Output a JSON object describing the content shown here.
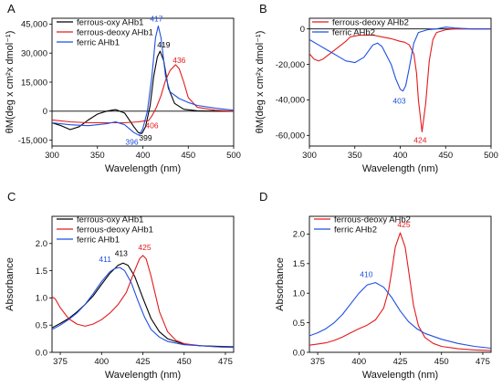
{
  "chart_data": [
    {
      "panel": "A",
      "type": "line",
      "xlabel": "Wavelength (nm)",
      "ylabel": "θM(deg x cm²x dmol⁻¹)",
      "xlim": [
        300,
        500
      ],
      "ylim": [
        -18000,
        48000
      ],
      "xticks": [
        300,
        350,
        400,
        450,
        500
      ],
      "yticks": [
        -15000,
        0,
        15000,
        30000,
        45000
      ],
      "ytick_labels": [
        "-15,000",
        "0",
        "15,000",
        "30,000",
        "45,000"
      ],
      "zero_line": true,
      "legend": "top-left",
      "colors": [
        "#000000",
        "#e31a1c",
        "#1f4fe0"
      ],
      "series": [
        {
          "name": "ferrous-oxy AHb1",
          "x": [
            300,
            310,
            320,
            330,
            340,
            350,
            360,
            370,
            380,
            390,
            395,
            399,
            403,
            408,
            412,
            416,
            419,
            423,
            428,
            435,
            445,
            460,
            480,
            500
          ],
          "y": [
            -6000,
            -7500,
            -9500,
            -8000,
            -4500,
            -1500,
            0,
            800,
            -1000,
            -8000,
            -11000,
            -11500,
            -8000,
            3000,
            18000,
            28000,
            31000,
            26000,
            12000,
            4000,
            1000,
            200,
            0,
            0
          ]
        },
        {
          "name": "ferrous-deoxy AHb1",
          "x": [
            300,
            320,
            340,
            360,
            380,
            395,
            402,
            406,
            410,
            415,
            420,
            425,
            430,
            436,
            440,
            445,
            450,
            460,
            480,
            500
          ],
          "y": [
            -4500,
            -5500,
            -6000,
            -6000,
            -6000,
            -5500,
            -5000,
            -5000,
            -2500,
            2000,
            8000,
            16000,
            21000,
            24000,
            22000,
            15000,
            7000,
            2000,
            500,
            0
          ]
        },
        {
          "name": "ferric AHb1",
          "x": [
            300,
            320,
            340,
            360,
            370,
            380,
            390,
            396,
            400,
            405,
            410,
            414,
            417,
            420,
            425,
            430,
            440,
            450,
            460,
            480,
            500
          ],
          "y": [
            -6000,
            -7000,
            -7500,
            -6500,
            -5500,
            -7000,
            -11000,
            -12500,
            -9000,
            0,
            18000,
            38000,
            44000,
            38000,
            18000,
            10000,
            6500,
            4500,
            3000,
            1500,
            500
          ]
        }
      ],
      "annotations": [
        {
          "text": "417",
          "x": 417,
          "y": 44000,
          "series": 2
        },
        {
          "text": "419",
          "x": 419,
          "y": 31000,
          "series": 0
        },
        {
          "text": "436",
          "x": 436,
          "y": 24000,
          "series": 1
        },
        {
          "text": "406",
          "x": 406,
          "y": -5000,
          "series": 1
        },
        {
          "text": "399",
          "x": 399,
          "y": -11500,
          "series": 0
        },
        {
          "text": "396",
          "x": 396,
          "y": -12500,
          "series": 2
        }
      ]
    },
    {
      "panel": "B",
      "type": "line",
      "xlabel": "Wavelength (nm)",
      "ylabel": "θM(deg x cm²x dmol⁻¹)",
      "xlim": [
        300,
        500
      ],
      "ylim": [
        -66000,
        6000
      ],
      "xticks": [
        300,
        350,
        400,
        450,
        500
      ],
      "yticks": [
        -60000,
        -40000,
        -20000,
        0
      ],
      "ytick_labels": [
        "-60,000",
        "-40,000",
        "-20,000",
        "0"
      ],
      "zero_line": true,
      "legend": "top-left",
      "colors": [
        "#e31a1c",
        "#1f4fe0"
      ],
      "series": [
        {
          "name": "ferrous-deoxy AHb2",
          "x": [
            300,
            305,
            310,
            315,
            320,
            330,
            340,
            345,
            350,
            355,
            360,
            370,
            380,
            390,
            400,
            405,
            410,
            415,
            418,
            420,
            424,
            428,
            432,
            436,
            440,
            450,
            460,
            480,
            500
          ],
          "y": [
            -14000,
            -17000,
            -18000,
            -17000,
            -15000,
            -11000,
            -7000,
            -4500,
            -4000,
            -3500,
            -3500,
            -3500,
            -4500,
            -5500,
            -7000,
            -7500,
            -9000,
            -14000,
            -25000,
            -40000,
            -58000,
            -42000,
            -18000,
            -6000,
            -2000,
            -500,
            0,
            0,
            0
          ]
        },
        {
          "name": "ferric AHb2",
          "x": [
            300,
            310,
            320,
            330,
            340,
            350,
            360,
            370,
            375,
            380,
            390,
            395,
            400,
            403,
            406,
            410,
            415,
            420,
            430,
            440,
            450,
            460,
            480,
            500
          ],
          "y": [
            -6000,
            -9000,
            -12000,
            -15000,
            -18000,
            -19000,
            -16000,
            -9000,
            -8000,
            -10000,
            -20000,
            -28000,
            -34000,
            -35000,
            -32000,
            -22000,
            -8000,
            -2000,
            -500,
            0,
            1000,
            500,
            0,
            0
          ]
        }
      ],
      "annotations": [
        {
          "text": "403",
          "x": 403,
          "y": -35000,
          "series": 1
        },
        {
          "text": "424",
          "x": 424,
          "y": -58000,
          "series": 0
        }
      ]
    },
    {
      "panel": "C",
      "type": "line",
      "xlabel": "Wavelength (nm)",
      "ylabel": "Absorbance",
      "xlim": [
        370,
        480
      ],
      "ylim": [
        0,
        2.5
      ],
      "xticks": [
        375,
        400,
        425,
        450,
        475
      ],
      "yticks": [
        0.0,
        0.5,
        1.0,
        1.5,
        2.0
      ],
      "ytick_labels": [
        "0.0",
        "0.5",
        "1.0",
        "1.5",
        "2.0"
      ],
      "zero_line": false,
      "legend": "top-left",
      "colors": [
        "#000000",
        "#e31a1c",
        "#1f4fe0"
      ],
      "series": [
        {
          "name": "ferrous-oxy AHb1",
          "x": [
            370,
            375,
            380,
            385,
            390,
            395,
            400,
            405,
            410,
            413,
            416,
            420,
            425,
            430,
            435,
            440,
            450,
            460,
            470,
            480
          ],
          "y": [
            0.45,
            0.53,
            0.62,
            0.74,
            0.88,
            1.04,
            1.25,
            1.45,
            1.6,
            1.64,
            1.6,
            1.4,
            1.0,
            0.62,
            0.38,
            0.25,
            0.15,
            0.12,
            0.11,
            0.1
          ]
        },
        {
          "name": "ferrous-deoxy AHb1",
          "x": [
            370,
            372,
            375,
            380,
            385,
            390,
            395,
            400,
            405,
            410,
            415,
            420,
            423,
            425,
            427,
            430,
            435,
            440,
            445,
            450,
            460,
            470,
            480
          ],
          "y": [
            1.02,
            0.98,
            0.82,
            0.62,
            0.52,
            0.48,
            0.52,
            0.6,
            0.72,
            0.88,
            1.1,
            1.5,
            1.72,
            1.78,
            1.72,
            1.4,
            0.75,
            0.38,
            0.22,
            0.16,
            0.12,
            0.1,
            0.09
          ]
        },
        {
          "name": "ferric AHb1",
          "x": [
            370,
            375,
            380,
            385,
            390,
            395,
            400,
            405,
            408,
            411,
            414,
            418,
            422,
            426,
            430,
            435,
            440,
            450,
            460,
            470,
            480
          ],
          "y": [
            0.42,
            0.5,
            0.6,
            0.72,
            0.88,
            1.08,
            1.3,
            1.48,
            1.54,
            1.56,
            1.5,
            1.28,
            0.95,
            0.65,
            0.42,
            0.28,
            0.2,
            0.14,
            0.12,
            0.1,
            0.09
          ]
        }
      ],
      "annotations": [
        {
          "text": "411",
          "x": 411,
          "y": 1.56,
          "series": 2
        },
        {
          "text": "413",
          "x": 413,
          "y": 1.64,
          "series": 0
        },
        {
          "text": "425",
          "x": 425,
          "y": 1.78,
          "series": 1
        }
      ]
    },
    {
      "panel": "D",
      "type": "line",
      "xlabel": "Wavelength (nm)",
      "ylabel": "Absorbance",
      "xlim": [
        370,
        480
      ],
      "ylim": [
        0,
        2.3
      ],
      "xticks": [
        375,
        400,
        425,
        450,
        475
      ],
      "yticks": [
        0.0,
        0.5,
        1.0,
        1.5,
        2.0
      ],
      "ytick_labels": [
        "0.0",
        "0.5",
        "1.0",
        "1.5",
        "2.0"
      ],
      "zero_line": false,
      "legend": "top-left",
      "colors": [
        "#e31a1c",
        "#1f4fe0"
      ],
      "series": [
        {
          "name": "ferrous-deoxy AHb2",
          "x": [
            370,
            375,
            380,
            385,
            390,
            395,
            400,
            405,
            410,
            415,
            418,
            420,
            422,
            425,
            428,
            430,
            433,
            436,
            440,
            445,
            450,
            460,
            470,
            480
          ],
          "y": [
            0.12,
            0.14,
            0.16,
            0.2,
            0.26,
            0.33,
            0.4,
            0.46,
            0.55,
            0.75,
            1.05,
            1.4,
            1.78,
            2.02,
            1.78,
            1.4,
            0.8,
            0.45,
            0.25,
            0.15,
            0.1,
            0.06,
            0.04,
            0.03
          ]
        },
        {
          "name": "ferric AHb2",
          "x": [
            370,
            375,
            380,
            385,
            390,
            395,
            400,
            405,
            410,
            415,
            420,
            425,
            430,
            435,
            440,
            450,
            460,
            470,
            480
          ],
          "y": [
            0.28,
            0.33,
            0.4,
            0.5,
            0.64,
            0.82,
            1.0,
            1.14,
            1.18,
            1.1,
            0.92,
            0.7,
            0.52,
            0.4,
            0.32,
            0.22,
            0.15,
            0.1,
            0.07
          ]
        }
      ],
      "annotations": [
        {
          "text": "410",
          "x": 410,
          "y": 1.18,
          "series": 1
        },
        {
          "text": "425",
          "x": 425,
          "y": 2.02,
          "series": 0
        }
      ]
    }
  ]
}
